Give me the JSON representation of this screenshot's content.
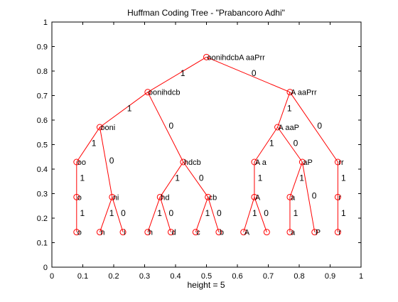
{
  "chart_data": {
    "type": "tree",
    "title": "Huffman Coding Tree - \"Prabancoro Adhi\"",
    "xlabel": "height = 5",
    "ylabel": "",
    "xlim": [
      0,
      1
    ],
    "ylim": [
      0,
      1
    ],
    "xticks": [
      0,
      0.1,
      0.2,
      0.3,
      0.4,
      0.5,
      0.6,
      0.7,
      0.8,
      0.9,
      1
    ],
    "yticks": [
      0,
      0.1,
      0.2,
      0.3,
      0.4,
      0.5,
      0.6,
      0.7,
      0.8,
      0.9,
      1
    ],
    "xtick_labels": [
      "0",
      "0.1",
      "0.2",
      "0.3",
      "0.4",
      "0.5",
      "0.6",
      "0.7",
      "0.8",
      "0.9",
      "1"
    ],
    "ytick_labels": [
      "0",
      "0.1",
      "0.2",
      "0.3",
      "0.4",
      "0.5",
      "0.6",
      "0.7",
      "0.8",
      "0.9",
      "1"
    ],
    "grid": false,
    "colors": {
      "edge": "#ff0000",
      "node": "#ff0000",
      "text": "#000000"
    },
    "nodes": [
      {
        "id": "root",
        "x": 0.5,
        "y": 0.857,
        "label": "oonihdcbA aaPrr"
      },
      {
        "id": "L",
        "x": 0.31,
        "y": 0.714,
        "label": "oonihdcb"
      },
      {
        "id": "R",
        "x": 0.77,
        "y": 0.714,
        "label": "A aaPrr"
      },
      {
        "id": "LL",
        "x": 0.155,
        "y": 0.571,
        "label": "ooni"
      },
      {
        "id": "RL",
        "x": 0.73,
        "y": 0.571,
        "label": "A aaP"
      },
      {
        "id": "LLL",
        "x": 0.08,
        "y": 0.429,
        "label": "oo"
      },
      {
        "id": "LR",
        "x": 0.425,
        "y": 0.429,
        "label": "hdcb"
      },
      {
        "id": "RLL",
        "x": 0.655,
        "y": 0.429,
        "label": "A a"
      },
      {
        "id": "RLR",
        "x": 0.81,
        "y": 0.429,
        "label": "aP"
      },
      {
        "id": "RR",
        "x": 0.925,
        "y": 0.429,
        "label": "rr"
      },
      {
        "id": "LLL1",
        "x": 0.08,
        "y": 0.286,
        "label": "o"
      },
      {
        "id": "LLR",
        "x": 0.195,
        "y": 0.286,
        "label": "ni"
      },
      {
        "id": "LRL",
        "x": 0.35,
        "y": 0.286,
        "label": "hd"
      },
      {
        "id": "LRR",
        "x": 0.505,
        "y": 0.286,
        "label": "cb"
      },
      {
        "id": "RLL1",
        "x": 0.655,
        "y": 0.286,
        "label": "A"
      },
      {
        "id": "RLRL",
        "x": 0.77,
        "y": 0.286,
        "label": "a"
      },
      {
        "id": "RR1",
        "x": 0.925,
        "y": 0.286,
        "label": "r"
      },
      {
        "id": "o",
        "x": 0.08,
        "y": 0.143,
        "label": "o"
      },
      {
        "id": "n",
        "x": 0.155,
        "y": 0.143,
        "label": "n"
      },
      {
        "id": "i",
        "x": 0.23,
        "y": 0.143,
        "label": "i"
      },
      {
        "id": "h",
        "x": 0.31,
        "y": 0.143,
        "label": "h"
      },
      {
        "id": "d",
        "x": 0.385,
        "y": 0.143,
        "label": "d"
      },
      {
        "id": "c",
        "x": 0.465,
        "y": 0.143,
        "label": "c"
      },
      {
        "id": "b",
        "x": 0.54,
        "y": 0.143,
        "label": "b"
      },
      {
        "id": "A",
        "x": 0.62,
        "y": 0.143,
        "label": "A"
      },
      {
        "id": "space",
        "x": 0.695,
        "y": 0.143,
        "label": ""
      },
      {
        "id": "a",
        "x": 0.77,
        "y": 0.143,
        "label": "a"
      },
      {
        "id": "P",
        "x": 0.85,
        "y": 0.143,
        "label": "P"
      },
      {
        "id": "r",
        "x": 0.925,
        "y": 0.143,
        "label": "r"
      }
    ],
    "edges": [
      {
        "from": "root",
        "to": "L",
        "label": "1"
      },
      {
        "from": "root",
        "to": "R",
        "label": "0"
      },
      {
        "from": "L",
        "to": "LL",
        "label": "1"
      },
      {
        "from": "L",
        "to": "LR",
        "label": "0"
      },
      {
        "from": "R",
        "to": "RL",
        "label": "1"
      },
      {
        "from": "R",
        "to": "RR",
        "label": "0"
      },
      {
        "from": "LL",
        "to": "LLL",
        "label": "1"
      },
      {
        "from": "LL",
        "to": "LLR",
        "label": "0"
      },
      {
        "from": "LR",
        "to": "LRL",
        "label": "1"
      },
      {
        "from": "LR",
        "to": "LRR",
        "label": "0"
      },
      {
        "from": "RL",
        "to": "RLL",
        "label": "1"
      },
      {
        "from": "RL",
        "to": "RLR",
        "label": "0"
      },
      {
        "from": "RR",
        "to": "RR1",
        "label": "1"
      },
      {
        "from": "LLL",
        "to": "LLL1",
        "label": "1"
      },
      {
        "from": "RLL",
        "to": "RLL1",
        "label": "1"
      },
      {
        "from": "RLR",
        "to": "RLRL",
        "label": "1"
      },
      {
        "from": "RLR",
        "to": "P",
        "label": "0"
      },
      {
        "from": "LLL1",
        "to": "o",
        "label": "1"
      },
      {
        "from": "LLR",
        "to": "n",
        "label": "1"
      },
      {
        "from": "LLR",
        "to": "i",
        "label": "0"
      },
      {
        "from": "LRL",
        "to": "h",
        "label": "1"
      },
      {
        "from": "LRL",
        "to": "d",
        "label": "0"
      },
      {
        "from": "LRR",
        "to": "c",
        "label": "1"
      },
      {
        "from": "LRR",
        "to": "b",
        "label": "0"
      },
      {
        "from": "RLL1",
        "to": "A",
        "label": "1"
      },
      {
        "from": "RLL1",
        "to": "space",
        "label": "0"
      },
      {
        "from": "RLRL",
        "to": "a",
        "label": "1"
      },
      {
        "from": "RR1",
        "to": "r",
        "label": "1"
      }
    ]
  }
}
